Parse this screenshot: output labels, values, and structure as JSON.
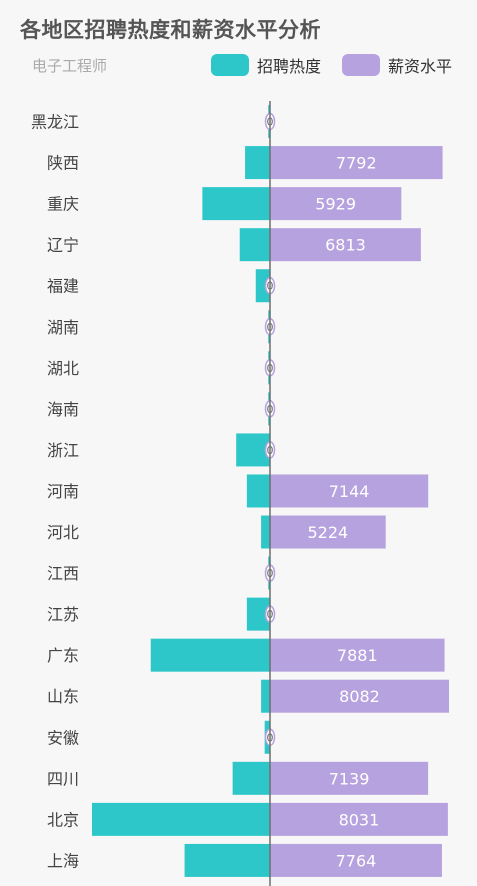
{
  "header": {
    "title": "各地区招聘热度和薪资水平分析",
    "subtitle": "电子工程师"
  },
  "legend": [
    {
      "label": "招聘热度",
      "color": "#2ec7c9"
    },
    {
      "label": "薪资水平",
      "color": "#b6a2de"
    }
  ],
  "chart_data": {
    "type": "bar",
    "orientation": "horizontal-butterfly",
    "title": "各地区招聘热度和薪资水平分析",
    "subtitle": "电子工程师",
    "categories": [
      "黑龙江",
      "陕西",
      "重庆",
      "辽宁",
      "福建",
      "湖南",
      "湖北",
      "海南",
      "浙江",
      "河南",
      "河北",
      "江西",
      "江苏",
      "广东",
      "山东",
      "安徽",
      "四川",
      "北京",
      "上海"
    ],
    "series": [
      {
        "name": "招聘热度",
        "color": "#2ec7c9",
        "direction": "left",
        "values": [
          1,
          14,
          38,
          17,
          8,
          1,
          1,
          1,
          19,
          13,
          5,
          1,
          13,
          67,
          5,
          3,
          21,
          100,
          48
        ]
      },
      {
        "name": "薪资水平",
        "color": "#b6a2de",
        "direction": "right",
        "values": [
          0,
          7792,
          5929,
          6813,
          0,
          0,
          0,
          0,
          0,
          7144,
          5224,
          0,
          0,
          7881,
          8082,
          0,
          7139,
          8031,
          7764
        ]
      }
    ],
    "legend_position": "top-right",
    "grid": false
  }
}
